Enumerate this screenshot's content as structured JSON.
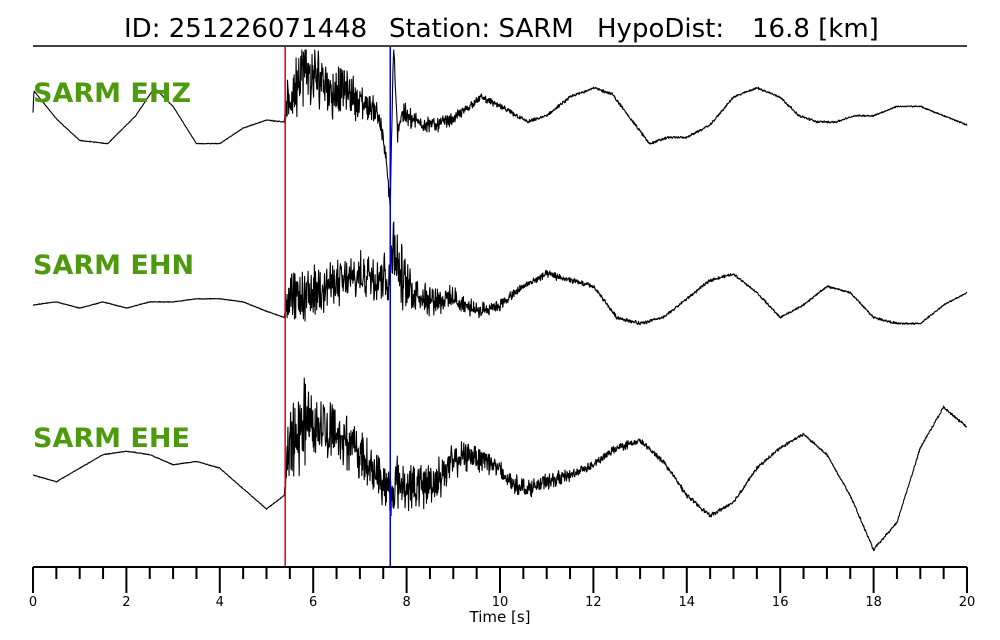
{
  "header": {
    "id_label": "ID: 251226071448",
    "station_label": "Station: SARM",
    "hypodist_label": "HypoDist:",
    "hypodist_value": "16.8 [km]"
  },
  "colors": {
    "label_green": "#4d9a0e",
    "p_pick": "#e00000",
    "s_pick": "#0000cc",
    "trace": "#000000"
  },
  "chart_data": {
    "type": "line",
    "xlabel": "Time [s]",
    "xlim": [
      0,
      20
    ],
    "x_major_ticks": [
      0,
      2,
      4,
      6,
      8,
      10,
      12,
      14,
      16,
      18,
      20
    ],
    "tick_labels": [
      "0",
      "2",
      "4",
      "6",
      "8",
      "10",
      "12",
      "14",
      "16",
      "18",
      "20"
    ],
    "minor_tick_step": 0.5,
    "picks": [
      {
        "phase": "P",
        "time": 5.4,
        "color": "#e00000"
      },
      {
        "phase": "S",
        "time": 7.65,
        "color": "#0000cc"
      }
    ],
    "series": [
      {
        "name": "SARM EHZ",
        "x": [
          0,
          0.02,
          0.5,
          1.0,
          1.6,
          2.2,
          2.6,
          3.0,
          3.5,
          4.0,
          4.5,
          5.0,
          5.38,
          5.45,
          5.6,
          5.8,
          6.0,
          6.2,
          6.4,
          6.6,
          6.8,
          7.0,
          7.2,
          7.4,
          7.55,
          7.65,
          7.72,
          7.8,
          7.9,
          8.2,
          8.6,
          9.0,
          9.6,
          10.0,
          10.6,
          11.0,
          11.5,
          12.0,
          12.4,
          12.8,
          13.2,
          13.6,
          14.0,
          14.5,
          15.0,
          15.5,
          16.0,
          16.4,
          16.8,
          17.2,
          17.6,
          18.0,
          18.5,
          19.0,
          19.5,
          20.0
        ],
        "y": [
          0.2,
          0.55,
          0.1,
          -0.25,
          -0.3,
          0.15,
          0.6,
          0.3,
          -0.3,
          -0.3,
          -0.05,
          0.08,
          0.05,
          0.3,
          0.6,
          0.9,
          0.7,
          0.8,
          0.5,
          0.6,
          0.5,
          0.35,
          0.3,
          0.2,
          -0.5,
          -1.3,
          1.3,
          -0.1,
          0.2,
          0.05,
          0.0,
          0.1,
          0.45,
          0.3,
          0.05,
          0.15,
          0.45,
          0.6,
          0.5,
          0.1,
          -0.3,
          -0.2,
          -0.2,
          0.0,
          0.45,
          0.6,
          0.45,
          0.15,
          0.05,
          0.05,
          0.15,
          0.15,
          0.3,
          0.3,
          0.15,
          0.0
        ],
        "noise": [
          0,
          0,
          0.01,
          0.01,
          0.01,
          0.01,
          0.01,
          0.01,
          0.01,
          0.01,
          0.01,
          0.01,
          0.02,
          0.6,
          0.9,
          0.9,
          0.9,
          0.8,
          0.7,
          0.6,
          0.6,
          0.5,
          0.4,
          0.35,
          0.2,
          0.2,
          0.2,
          0.3,
          0.3,
          0.25,
          0.2,
          0.15,
          0.1,
          0.08,
          0.05,
          0.04,
          0.04,
          0.04,
          0.04,
          0.04,
          0.04,
          0.03,
          0.03,
          0.03,
          0.03,
          0.03,
          0.03,
          0.03,
          0.03,
          0.03,
          0.02,
          0.02,
          0.02,
          0.02,
          0.02,
          0.02
        ]
      },
      {
        "name": "SARM EHN",
        "x": [
          0,
          0.5,
          1.0,
          1.5,
          2.0,
          2.5,
          3.0,
          3.5,
          4.0,
          4.5,
          5.0,
          5.38,
          5.45,
          5.8,
          6.2,
          6.8,
          7.2,
          7.5,
          7.65,
          7.72,
          7.8,
          8.0,
          8.5,
          9.0,
          9.5,
          10.0,
          10.5,
          11.0,
          11.5,
          12.0,
          12.5,
          13.0,
          13.5,
          14.0,
          14.5,
          15.0,
          15.5,
          16.0,
          16.5,
          17.0,
          17.5,
          18.0,
          18.5,
          19.0,
          19.5,
          20.0
        ],
        "y": [
          0.0,
          0.05,
          -0.05,
          0.05,
          -0.05,
          0.05,
          0.05,
          0.1,
          0.1,
          0.05,
          -0.1,
          -0.2,
          0.1,
          0.1,
          0.3,
          0.4,
          0.5,
          0.5,
          0.4,
          1.2,
          0.6,
          0.3,
          0.1,
          0.1,
          -0.1,
          0.0,
          0.3,
          0.5,
          0.4,
          0.3,
          -0.2,
          -0.3,
          -0.2,
          0.1,
          0.4,
          0.5,
          0.2,
          -0.2,
          0.0,
          0.3,
          0.2,
          -0.2,
          -0.3,
          -0.3,
          0.0,
          0.2
        ],
        "noise": [
          0.01,
          0.01,
          0.01,
          0.01,
          0.01,
          0.01,
          0.01,
          0.01,
          0.01,
          0.01,
          0.01,
          0.01,
          0.7,
          0.7,
          0.6,
          0.6,
          0.6,
          0.7,
          0.8,
          0.9,
          1.0,
          0.6,
          0.4,
          0.3,
          0.2,
          0.15,
          0.1,
          0.1,
          0.08,
          0.06,
          0.05,
          0.05,
          0.04,
          0.04,
          0.04,
          0.03,
          0.03,
          0.03,
          0.03,
          0.03,
          0.03,
          0.03,
          0.03,
          0.02,
          0.02,
          0.02
        ]
      },
      {
        "name": "SARM EHE",
        "x": [
          0,
          0.5,
          1.0,
          1.5,
          2.0,
          2.5,
          3.0,
          3.5,
          4.0,
          4.5,
          5.0,
          5.38,
          5.45,
          5.8,
          6.2,
          6.6,
          7.0,
          7.4,
          7.65,
          7.8,
          8.2,
          8.6,
          9.0,
          9.4,
          9.8,
          10.2,
          10.6,
          11.0,
          11.5,
          12.0,
          12.5,
          13.0,
          13.5,
          14.0,
          14.5,
          15.0,
          15.5,
          16.0,
          16.5,
          17.0,
          17.5,
          18.0,
          18.5,
          19.0,
          19.5,
          20.0
        ],
        "y": [
          0.0,
          -0.1,
          0.1,
          0.3,
          0.35,
          0.3,
          0.15,
          0.2,
          0.1,
          -0.2,
          -0.5,
          -0.3,
          0.3,
          0.8,
          0.7,
          0.6,
          0.3,
          0.0,
          -0.3,
          -0.1,
          -0.2,
          -0.1,
          0.2,
          0.3,
          0.2,
          -0.1,
          -0.2,
          -0.1,
          0.0,
          0.15,
          0.4,
          0.5,
          0.2,
          -0.3,
          -0.6,
          -0.4,
          0.1,
          0.4,
          0.6,
          0.3,
          -0.3,
          -1.1,
          -0.7,
          0.4,
          1.0,
          0.7
        ],
        "noise": [
          0.01,
          0.01,
          0.01,
          0.01,
          0.01,
          0.01,
          0.01,
          0.01,
          0.01,
          0.01,
          0.01,
          0.01,
          0.9,
          1.0,
          0.9,
          0.7,
          0.6,
          0.5,
          0.7,
          0.6,
          0.6,
          0.5,
          0.4,
          0.35,
          0.3,
          0.25,
          0.2,
          0.2,
          0.15,
          0.1,
          0.1,
          0.08,
          0.06,
          0.05,
          0.05,
          0.04,
          0.04,
          0.04,
          0.03,
          0.03,
          0.03,
          0.03,
          0.03,
          0.03,
          0.03,
          0.03
        ]
      }
    ]
  }
}
